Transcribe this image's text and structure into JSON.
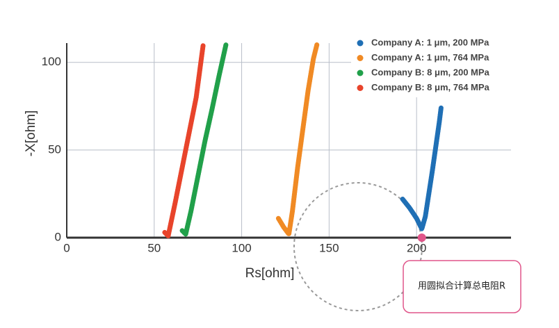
{
  "chart_data": {
    "type": "line",
    "x_label": "Rs[ohm]",
    "y_label": "-X[ohm]",
    "xlim": [
      0,
      254
    ],
    "ylim": [
      0,
      111
    ],
    "xticks": [
      0,
      50,
      100,
      150,
      200
    ],
    "yticks": [
      0,
      50,
      100
    ],
    "grid": true,
    "legend": "upper right",
    "series": [
      {
        "name": "Company A: 1 μm, 200 MPa",
        "color": "#1f6fb5",
        "x": [
          192,
          196,
          200,
          203,
          205,
          207,
          209,
          211,
          213,
          214
        ],
        "values": [
          22,
          17,
          11,
          5,
          12,
          25,
          38,
          52,
          66,
          74
        ]
      },
      {
        "name": "Company A: 1 μm, 764 MPa",
        "color": "#f08a24",
        "x": [
          121,
          124,
          127,
          129,
          132,
          135,
          138,
          141,
          143
        ],
        "values": [
          11,
          6,
          2,
          15,
          40,
          62,
          84,
          102,
          110
        ]
      },
      {
        "name": "Company B: 8 μm, 200 MPa",
        "color": "#21a04a",
        "x": [
          66,
          68,
          71,
          75,
          79,
          83,
          87,
          91
        ],
        "values": [
          4,
          2,
          15,
          35,
          55,
          73,
          92,
          110
        ]
      },
      {
        "name": "Company B: 8 μm, 764 MPa",
        "color": "#e8442b",
        "x": [
          56,
          58,
          62,
          66,
          70,
          74,
          78
        ],
        "values": [
          3,
          1,
          20,
          40,
          60,
          80,
          110
        ]
      }
    ],
    "annotation": {
      "text": "用圆拟合计算总电阻R",
      "x": 203,
      "y": 0,
      "color": "#e0558a"
    }
  }
}
